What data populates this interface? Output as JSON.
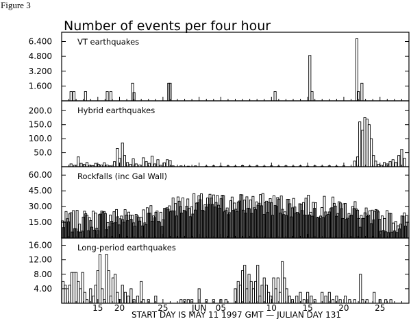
{
  "figure_label": "Figure 3",
  "chart_data": {
    "type": "bar",
    "title": "Number of events per four hour",
    "footer": "START DAY IS MAY 11 1997 GMT  — JULIAN DAY 131",
    "x_ticks": [
      {
        "day": 16,
        "label": "15"
      },
      {
        "day": 19,
        "label": "20"
      },
      {
        "day": 25,
        "label": "25"
      },
      {
        "day": 30,
        "label": "JUN"
      },
      {
        "day": 33,
        "label": "05"
      },
      {
        "day": 40,
        "label": "10"
      },
      {
        "day": 45,
        "label": "15"
      },
      {
        "day": 50,
        "label": "20"
      },
      {
        "day": 55,
        "label": "25"
      }
    ],
    "xlim": [
      11,
      59
    ],
    "panels": [
      {
        "name": "VT earthquakes",
        "ylim": [
          0,
          7400
        ],
        "yticks": [
          "1.600",
          "3.200",
          "4.800",
          "6.400"
        ],
        "ytick_values": [
          1600,
          3200,
          4800,
          6400
        ],
        "points": [
          [
            12.3,
            1000
          ],
          [
            12.7,
            1000
          ],
          [
            14.3,
            1000
          ],
          [
            17.3,
            1000
          ],
          [
            17.8,
            1000
          ],
          [
            20.8,
            1900
          ],
          [
            21.0,
            900
          ],
          [
            25.8,
            1900
          ],
          [
            26.0,
            1900
          ],
          [
            40.5,
            1000
          ],
          [
            45.3,
            4900
          ],
          [
            45.6,
            1000
          ],
          [
            51.8,
            6700
          ],
          [
            52.0,
            1000
          ],
          [
            52.5,
            1900
          ]
        ]
      },
      {
        "name": "Hybrid earthquakes",
        "ylim": [
          0,
          235
        ],
        "yticks": [
          "50.0",
          "100.0",
          "150.0",
          "200.0"
        ],
        "ytick_values": [
          50,
          100,
          150,
          200
        ],
        "points": [
          [
            12.3,
            10
          ],
          [
            12.8,
            5
          ],
          [
            13.3,
            35
          ],
          [
            13.7,
            12
          ],
          [
            14.1,
            8
          ],
          [
            14.5,
            15
          ],
          [
            14.9,
            5
          ],
          [
            15.3,
            4
          ],
          [
            15.7,
            12
          ],
          [
            16.1,
            8
          ],
          [
            16.5,
            6
          ],
          [
            16.9,
            14
          ],
          [
            17.3,
            6
          ],
          [
            17.7,
            3
          ],
          [
            18.3,
            18
          ],
          [
            18.7,
            65
          ],
          [
            19.0,
            30
          ],
          [
            19.4,
            85
          ],
          [
            19.7,
            40
          ],
          [
            20.1,
            15
          ],
          [
            20.5,
            8
          ],
          [
            20.9,
            28
          ],
          [
            21.3,
            10
          ],
          [
            21.8,
            6
          ],
          [
            22.3,
            32
          ],
          [
            22.7,
            18
          ],
          [
            23.1,
            12
          ],
          [
            23.5,
            38
          ],
          [
            23.9,
            10
          ],
          [
            24.3,
            25
          ],
          [
            24.7,
            5
          ],
          [
            25.2,
            14
          ],
          [
            25.6,
            25
          ],
          [
            26.0,
            22
          ],
          [
            26.4,
            3
          ],
          [
            27.5,
            3
          ],
          [
            28.5,
            2
          ],
          [
            29.5,
            3
          ],
          [
            31.0,
            2
          ],
          [
            32.0,
            3
          ],
          [
            33.0,
            2
          ],
          [
            34.0,
            3
          ],
          [
            35.0,
            2
          ],
          [
            36.0,
            4
          ],
          [
            37.0,
            2
          ],
          [
            38.0,
            3
          ],
          [
            39.0,
            2
          ],
          [
            40.0,
            3
          ],
          [
            41.0,
            2
          ],
          [
            42.0,
            3
          ],
          [
            43.0,
            2
          ],
          [
            44.0,
            3
          ],
          [
            45.0,
            2
          ],
          [
            46.0,
            3
          ],
          [
            47.0,
            2
          ],
          [
            48.0,
            3
          ],
          [
            49.0,
            2
          ],
          [
            50.0,
            3
          ],
          [
            51.5,
            20
          ],
          [
            51.9,
            35
          ],
          [
            52.2,
            160
          ],
          [
            52.6,
            130
          ],
          [
            52.9,
            175
          ],
          [
            53.2,
            170
          ],
          [
            53.5,
            150
          ],
          [
            53.8,
            100
          ],
          [
            54.1,
            40
          ],
          [
            54.4,
            20
          ],
          [
            54.8,
            8
          ],
          [
            55.2,
            5
          ],
          [
            55.6,
            15
          ],
          [
            56.0,
            10
          ],
          [
            56.4,
            18
          ],
          [
            56.8,
            25
          ],
          [
            57.2,
            15
          ],
          [
            57.6,
            40
          ],
          [
            58.0,
            62
          ],
          [
            58.4,
            30
          ]
        ]
      },
      {
        "name": "Rockfalls (inc Gal Wall)",
        "ylim": [
          0,
          68
        ],
        "yticks": [
          "15.00",
          "30.00",
          "45.00",
          "60.00"
        ],
        "ytick_values": [
          15,
          30,
          45,
          60
        ],
        "series_kind": "dense"
      },
      {
        "name": "Long-period earthquakes",
        "ylim": [
          0,
          18
        ],
        "yticks": [
          "4.00",
          "8.00",
          "12.00",
          "16.00"
        ],
        "ytick_values": [
          4,
          8,
          12,
          16
        ],
        "points": [
          [
            11.2,
            6
          ],
          [
            11.5,
            5
          ],
          [
            11.8,
            4
          ],
          [
            12.1,
            5
          ],
          [
            12.4,
            8.5
          ],
          [
            12.7,
            8.5
          ],
          [
            13.0,
            8.5
          ],
          [
            13.3,
            6
          ],
          [
            13.6,
            4
          ],
          [
            13.9,
            8.5
          ],
          [
            14.2,
            3
          ],
          [
            14.5,
            1
          ],
          [
            15.0,
            4
          ],
          [
            15.4,
            2
          ],
          [
            15.7,
            5
          ],
          [
            16.0,
            9
          ],
          [
            16.3,
            13.5
          ],
          [
            16.6,
            4
          ],
          [
            16.9,
            1
          ],
          [
            17.2,
            13.5
          ],
          [
            17.5,
            9
          ],
          [
            17.8,
            2
          ],
          [
            18.1,
            7
          ],
          [
            18.4,
            8
          ],
          [
            18.7,
            3
          ],
          [
            19.0,
            1
          ],
          [
            19.4,
            5
          ],
          [
            19.8,
            3
          ],
          [
            20.2,
            2
          ],
          [
            20.6,
            4
          ],
          [
            21.0,
            1
          ],
          [
            21.5,
            2
          ],
          [
            22.0,
            6
          ],
          [
            22.3,
            1
          ],
          [
            23.0,
            1
          ],
          [
            24.0,
            2
          ],
          [
            27.5,
            1
          ],
          [
            28.0,
            1
          ],
          [
            28.5,
            1
          ],
          [
            29.0,
            1
          ],
          [
            30.0,
            4
          ],
          [
            31.0,
            1
          ],
          [
            32.0,
            1
          ],
          [
            33.0,
            1
          ],
          [
            33.7,
            1
          ],
          [
            35.0,
            4
          ],
          [
            35.4,
            6
          ],
          [
            35.7,
            5
          ],
          [
            36.0,
            9
          ],
          [
            36.3,
            10.5
          ],
          [
            36.6,
            4
          ],
          [
            36.9,
            8
          ],
          [
            37.2,
            6
          ],
          [
            37.5,
            4
          ],
          [
            37.8,
            6
          ],
          [
            38.1,
            10.5
          ],
          [
            38.4,
            2
          ],
          [
            38.7,
            5
          ],
          [
            39.0,
            7
          ],
          [
            39.3,
            5
          ],
          [
            39.6,
            3
          ],
          [
            39.9,
            2
          ],
          [
            40.3,
            7
          ],
          [
            40.6,
            4
          ],
          [
            40.9,
            7
          ],
          [
            41.2,
            3
          ],
          [
            41.5,
            11.5
          ],
          [
            41.8,
            7
          ],
          [
            42.1,
            4
          ],
          [
            42.5,
            2
          ],
          [
            42.9,
            1
          ],
          [
            43.5,
            2
          ],
          [
            44.0,
            3
          ],
          [
            44.5,
            1
          ],
          [
            45.0,
            3
          ],
          [
            45.5,
            2
          ],
          [
            46.0,
            1
          ],
          [
            47.0,
            3
          ],
          [
            47.5,
            2
          ],
          [
            48.0,
            3
          ],
          [
            48.5,
            1
          ],
          [
            49.0,
            2
          ],
          [
            49.5,
            1
          ],
          [
            50.2,
            2
          ],
          [
            50.8,
            1
          ],
          [
            51.5,
            1
          ],
          [
            52.3,
            8
          ],
          [
            52.6,
            1
          ],
          [
            53.2,
            1
          ],
          [
            54.2,
            3
          ],
          [
            55.0,
            1
          ],
          [
            55.8,
            1
          ],
          [
            56.5,
            1
          ]
        ]
      }
    ]
  }
}
